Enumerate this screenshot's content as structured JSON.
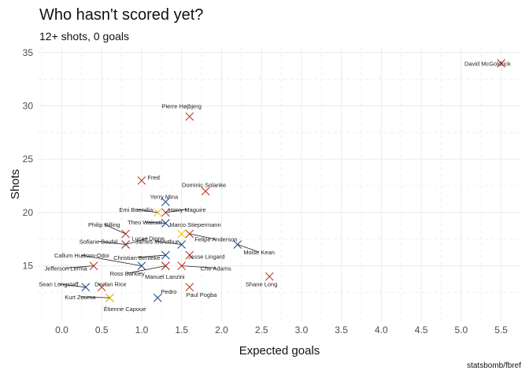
{
  "chart_data": {
    "type": "scatter",
    "title": "Who hasn't scored yet?",
    "subtitle": "12+ shots, 0 goals",
    "caption": "statsbomb/fbref",
    "xlabel": "Expected goals",
    "ylabel": "Shots",
    "xlim": [
      -0.3,
      5.75
    ],
    "ylim": [
      9.8,
      35.5
    ],
    "xticks": [
      "0.0",
      "0.5",
      "1.0",
      "1.5",
      "2.0",
      "2.5",
      "3.0",
      "3.5",
      "4.0",
      "4.5",
      "5.0",
      "5.5"
    ],
    "yticks": [
      "15",
      "20",
      "25",
      "30",
      "35"
    ],
    "grid": true,
    "colors": {
      "red": "#c0392b",
      "blue": "#1f4e8c",
      "yellow": "#f1c40f",
      "grid": "#ebebeb"
    },
    "points": [
      {
        "name": "David McGoldrick",
        "x": 5.5,
        "y": 34,
        "color": "red",
        "label_x": 5.33,
        "label_y": 34
      },
      {
        "name": "Pierre Højbjerg",
        "x": 1.6,
        "y": 29,
        "color": "red",
        "label_x": 1.5,
        "label_y": 30
      },
      {
        "name": "Fred",
        "x": 1.0,
        "y": 23,
        "color": "red",
        "label_x": 1.15,
        "label_y": 23.3
      },
      {
        "name": "Dominic Solanke",
        "x": 1.8,
        "y": 22,
        "color": "red",
        "label_x": 1.78,
        "label_y": 22.6
      },
      {
        "name": "Yerry Mina",
        "x": 1.3,
        "y": 21,
        "color": "blue",
        "label_x": 1.28,
        "label_y": 21.5
      },
      {
        "name": "Emi Buendía",
        "x": 1.2,
        "y": 20,
        "color": "yellow",
        "label_x": 0.93,
        "label_y": 20.3
      },
      {
        "name": "Harry Maguire",
        "x": 1.3,
        "y": 20,
        "color": "red",
        "label_x": 1.57,
        "label_y": 20.3
      },
      {
        "name": "Theo Walcott",
        "x": 1.3,
        "y": 19,
        "color": "blue",
        "label_x": 1.04,
        "label_y": 19.1
      },
      {
        "name": "Marco Stiepermann",
        "x": 1.5,
        "y": 18,
        "color": "yellow",
        "label_x": 1.67,
        "label_y": 18.9
      },
      {
        "name": "Philip Billing",
        "x": 0.8,
        "y": 18,
        "color": "red",
        "label_x": 0.53,
        "label_y": 18.9
      },
      {
        "name": "Felipe Anderson",
        "x": 1.6,
        "y": 18,
        "color": "red",
        "label_x": 1.93,
        "label_y": 17.5
      },
      {
        "name": "Lucas Digne",
        "x": 0.8,
        "y": 17,
        "color": "blue",
        "label_x": 1.08,
        "label_y": 17.6
      },
      {
        "name": "Sofiane Boufal",
        "x": 0.8,
        "y": 17,
        "color": "red",
        "label_x": 0.46,
        "label_y": 17.3
      },
      {
        "name": "James McArthur",
        "x": 1.5,
        "y": 17,
        "color": "blue",
        "label_x": 1.19,
        "label_y": 17.3
      },
      {
        "name": "Moise Kean",
        "x": 2.2,
        "y": 17,
        "color": "blue",
        "label_x": 2.47,
        "label_y": 16.3
      },
      {
        "name": "Christian Benteke",
        "x": 1.3,
        "y": 16,
        "color": "blue",
        "label_x": 0.94,
        "label_y": 15.8
      },
      {
        "name": "Jesse Lingard",
        "x": 1.6,
        "y": 16,
        "color": "red",
        "label_x": 1.81,
        "label_y": 15.9
      },
      {
        "name": "Callum Hudson-Odoi",
        "x": 1.0,
        "y": 15,
        "color": "blue",
        "label_x": 0.25,
        "label_y": 16.0
      },
      {
        "name": "Jefferson Lerma",
        "x": 0.4,
        "y": 15,
        "color": "red",
        "label_x": 0.05,
        "label_y": 14.8
      },
      {
        "name": "Che Adams",
        "x": 1.5,
        "y": 15,
        "color": "red",
        "label_x": 1.93,
        "label_y": 14.8
      },
      {
        "name": "Ross Barkley",
        "x": 1.3,
        "y": 15,
        "color": "blue",
        "label_x": 0.82,
        "label_y": 14.3
      },
      {
        "name": "Manuel Lanzini",
        "x": 1.3,
        "y": 15,
        "color": "red",
        "label_x": 1.29,
        "label_y": 14.0
      },
      {
        "name": "Sean Longstaff",
        "x": 0.3,
        "y": 13,
        "color": "blue",
        "label_x": -0.04,
        "label_y": 13.3
      },
      {
        "name": "Declan Rice",
        "x": 0.5,
        "y": 13,
        "color": "red",
        "label_x": 0.61,
        "label_y": 13.3
      },
      {
        "name": "Shane Long",
        "x": 2.6,
        "y": 14,
        "color": "red",
        "label_x": 2.5,
        "label_y": 13.3
      },
      {
        "name": "Pedro",
        "x": 1.2,
        "y": 12,
        "color": "blue",
        "label_x": 1.34,
        "label_y": 12.6
      },
      {
        "name": "Paul Pogba",
        "x": 1.6,
        "y": 13,
        "color": "red",
        "label_x": 1.75,
        "label_y": 12.3
      },
      {
        "name": "Kurt Zouma",
        "x": 0.6,
        "y": 12,
        "color": "blue",
        "label_x": 0.23,
        "label_y": 12.1
      },
      {
        "name": "Étienne Capoue",
        "x": 0.6,
        "y": 12,
        "color": "yellow",
        "label_x": 0.79,
        "label_y": 11.0
      }
    ]
  }
}
